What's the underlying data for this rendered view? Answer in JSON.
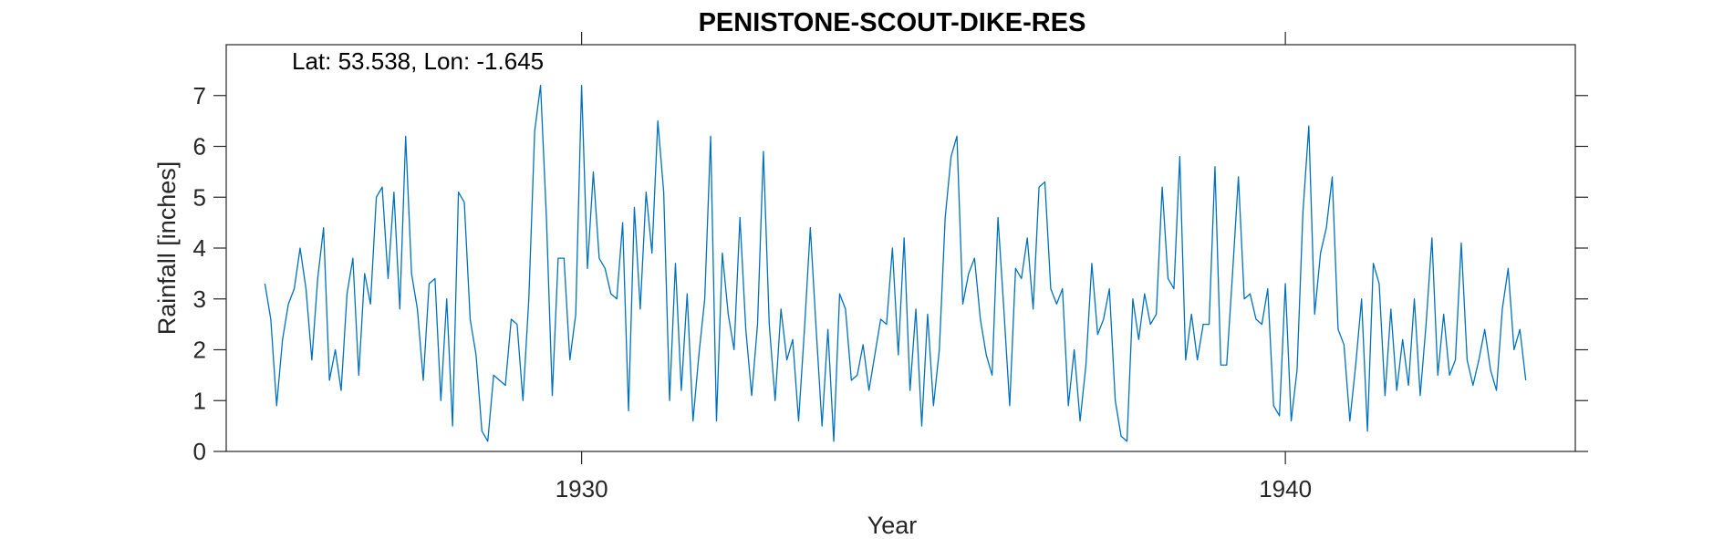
{
  "chart_data": {
    "type": "line",
    "title": "PENISTONE-SCOUT-DIKE-RES",
    "xlabel": "Year",
    "ylabel": "Rainfall [inches]",
    "annotation": "Lat: 53.538, Lon: -1.645",
    "xlim": [
      1924.95,
      1944.12
    ],
    "ylim": [
      0,
      8
    ],
    "xticks": [
      1930,
      1940
    ],
    "xtick_labels": [
      "1930",
      "1940"
    ],
    "yticks": [
      0,
      1,
      2,
      3,
      4,
      5,
      6,
      7
    ],
    "ytick_labels": [
      "0",
      "1",
      "2",
      "3",
      "4",
      "5",
      "6",
      "7"
    ],
    "grid": false,
    "series_color": "#0072BD",
    "series": [
      {
        "x_start": 1925.5,
        "x_step": 0.08333,
        "values": [
          3.3,
          2.6,
          0.9,
          2.2,
          2.9,
          3.2,
          4.0,
          3.2,
          1.8,
          3.4,
          4.4,
          1.4,
          2.0,
          1.2,
          3.1,
          3.8,
          1.5,
          3.5,
          2.9,
          5.0,
          5.2,
          3.4,
          5.1,
          2.8,
          6.2,
          3.5,
          2.8,
          1.4,
          3.3,
          3.4,
          1.0,
          3.0,
          0.5,
          5.1,
          4.9,
          2.6,
          1.9,
          0.4,
          0.2,
          1.5,
          1.4,
          1.3,
          2.6,
          2.5,
          1.0,
          3.0,
          6.3,
          7.2,
          4.6,
          1.1,
          3.8,
          3.8,
          1.8,
          2.7,
          7.2,
          3.6,
          5.5,
          3.8,
          3.6,
          3.1,
          3.0,
          4.5,
          0.8,
          4.8,
          2.8,
          5.1,
          3.9,
          6.5,
          5.1,
          1.0,
          3.7,
          1.2,
          3.1,
          0.6,
          1.9,
          3.0,
          6.2,
          0.6,
          3.9,
          2.7,
          2.0,
          4.6,
          2.4,
          1.1,
          2.5,
          5.9,
          2.5,
          1.0,
          2.8,
          1.8,
          2.2,
          0.6,
          2.4,
          4.4,
          2.4,
          0.5,
          2.4,
          0.2,
          3.1,
          2.8,
          1.4,
          1.5,
          2.1,
          1.2,
          1.9,
          2.6,
          2.5,
          4.0,
          1.9,
          4.2,
          1.2,
          2.8,
          0.5,
          2.7,
          0.9,
          2.0,
          4.6,
          5.8,
          6.2,
          2.9,
          3.5,
          3.8,
          2.6,
          1.9,
          1.5,
          4.6,
          2.8,
          0.9,
          3.6,
          3.4,
          4.2,
          2.8,
          5.2,
          5.3,
          3.2,
          2.9,
          3.2,
          0.9,
          2.0,
          0.6,
          1.7,
          3.7,
          2.3,
          2.6,
          3.2,
          1.0,
          0.3,
          0.2,
          3.0,
          2.2,
          3.1,
          2.5,
          2.7,
          5.2,
          3.4,
          3.2,
          5.8,
          1.8,
          2.7,
          1.8,
          2.5,
          2.5,
          5.6,
          1.7,
          1.7,
          3.5,
          5.4,
          3.0,
          3.1,
          2.6,
          2.5,
          3.2,
          0.9,
          0.7,
          3.3,
          0.6,
          1.6,
          4.7,
          6.4,
          2.7,
          3.9,
          4.4,
          5.4,
          2.4,
          2.1,
          0.6,
          1.7,
          3.0,
          0.4,
          3.7,
          3.3,
          1.1,
          2.8,
          1.2,
          2.2,
          1.3,
          3.0,
          1.1,
          2.5,
          4.2,
          1.5,
          2.7,
          1.5,
          1.8,
          4.1,
          1.8,
          1.3,
          1.8,
          2.4,
          1.6,
          1.2,
          2.8,
          3.6,
          2.0,
          2.4,
          1.4
        ]
      }
    ]
  }
}
